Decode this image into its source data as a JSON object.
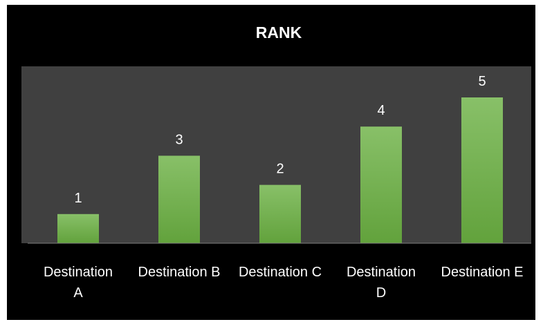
{
  "chart_data": {
    "type": "bar",
    "title": "RANK",
    "categories": [
      "Destination A",
      "Destination B",
      "Destination C",
      "Destination D",
      "Destination E"
    ],
    "category_lines": [
      [
        "Destination",
        "A"
      ],
      [
        "Destination B"
      ],
      [
        "Destination C"
      ],
      [
        "Destination",
        "D"
      ],
      [
        "Destination E"
      ]
    ],
    "values": [
      1,
      3,
      2,
      4,
      5
    ],
    "data_labels": [
      "1",
      "3",
      "2",
      "4",
      "5"
    ],
    "xlabel": "",
    "ylabel": "",
    "ylim": [
      0,
      5.5
    ],
    "grid": false,
    "legend": "none",
    "colors": {
      "background": "#000000",
      "plot_area": "#404040",
      "bar_top": "#88c068",
      "bar_bottom": "#62a23c",
      "axis_line": "#7f7f7f",
      "text": "#ffffff"
    }
  }
}
